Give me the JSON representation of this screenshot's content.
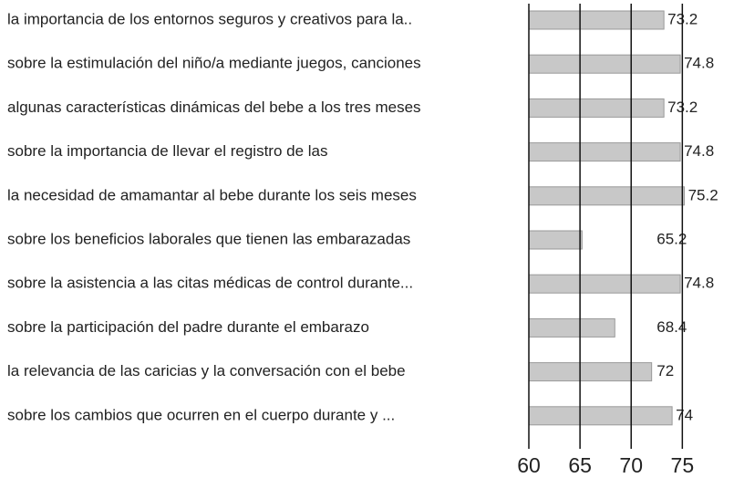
{
  "chart_data": {
    "type": "barh",
    "categories": [
      "la importancia de los entornos seguros y creativos para la..",
      "sobre la estimulación del niño/a mediante juegos, canciones",
      "algunas características dinámicas del bebe a los tres meses",
      "sobre la importancia de llevar el registro de las",
      "la necesidad de amamantar al bebe durante los seis meses",
      "sobre los beneficios laborales que tienen las embarazadas",
      "sobre la asistencia a las citas médicas de control durante...",
      "sobre la participación del padre durante el embarazo",
      "la relevancia de las caricias y la conversación con el bebe",
      "sobre los cambios que ocurren en el cuerpo durante y ..."
    ],
    "values": [
      73.2,
      74.8,
      73.2,
      74.8,
      75.2,
      65.2,
      74.8,
      68.4,
      72,
      74
    ],
    "color": "#c8c8c8",
    "xlim": [
      60,
      78
    ],
    "xticks": [
      60,
      65,
      70,
      75
    ],
    "grid": true
  }
}
